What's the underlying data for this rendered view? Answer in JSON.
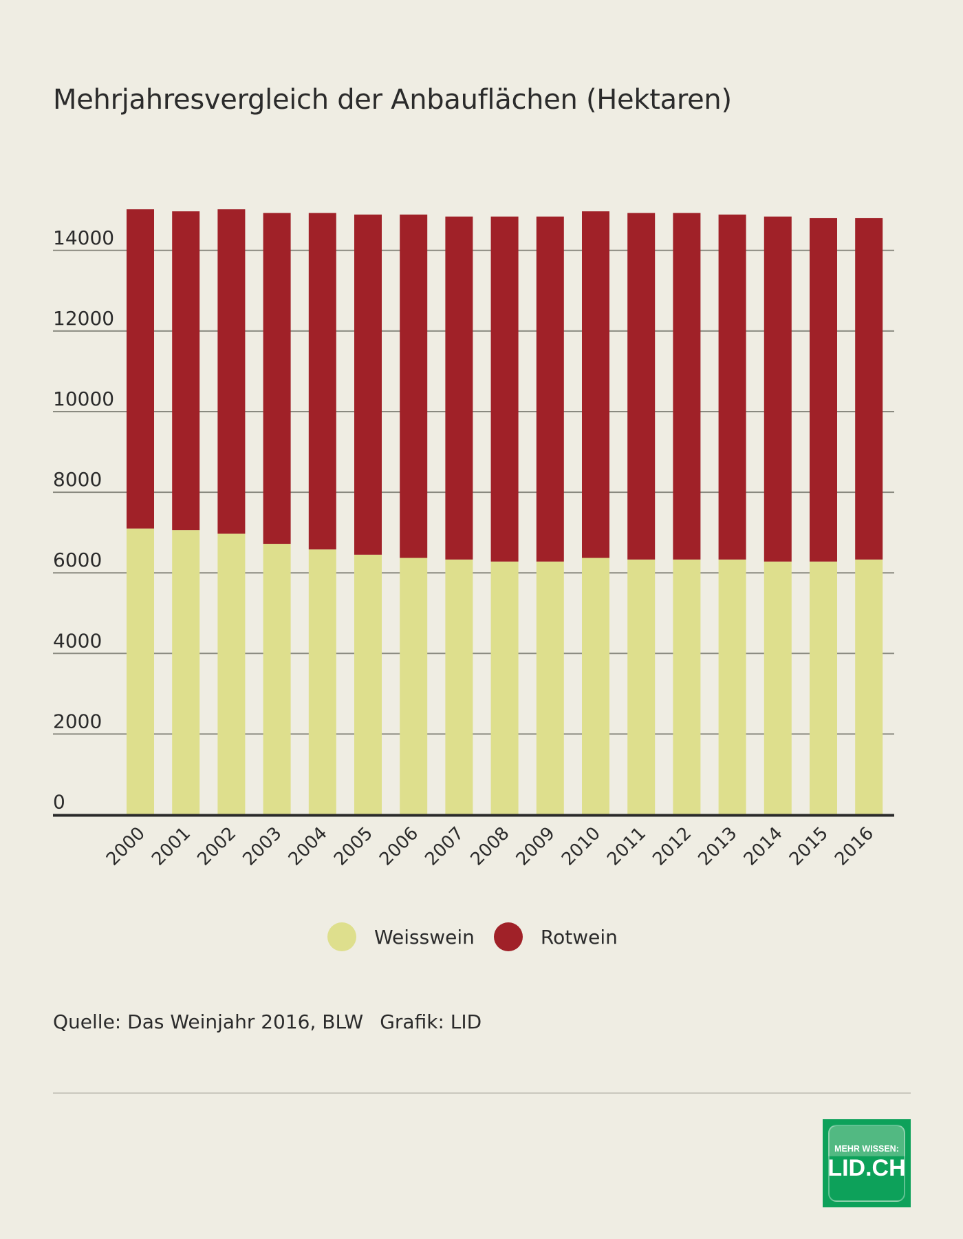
{
  "chart_data": {
    "type": "bar",
    "stacked": true,
    "title": "Mehrjahresvergleich der Anbauflächen (Hektaren)",
    "xlabel": "",
    "ylabel": "",
    "categories": [
      "2000",
      "2001",
      "2002",
      "2003",
      "2004",
      "2005",
      "2006",
      "2007",
      "2008",
      "2009",
      "2010",
      "2011",
      "2012",
      "2013",
      "2014",
      "2015",
      "2016"
    ],
    "series": [
      {
        "name": "Weisswein",
        "color": "#dedf8d",
        "values": [
          7100,
          7060,
          6970,
          6720,
          6580,
          6450,
          6370,
          6330,
          6280,
          6280,
          6370,
          6330,
          6330,
          6330,
          6280,
          6280,
          6330
        ]
      },
      {
        "name": "Rotwein",
        "color": "#a02128",
        "values": [
          7920,
          7910,
          8050,
          8210,
          8350,
          8440,
          8520,
          8510,
          8560,
          8560,
          8600,
          8600,
          8600,
          8560,
          8560,
          8520,
          8470
        ]
      }
    ],
    "ylim": [
      0,
      15000
    ],
    "yticks": [
      "0",
      "2000",
      "4000",
      "6000",
      "8000",
      "10000",
      "12000",
      "14000"
    ],
    "grid": true,
    "legend": "bottom-center"
  },
  "footer": {
    "source": "Quelle: Das Weinjahr 2016, BLW",
    "credit": "Grafik: LID"
  },
  "logo": {
    "line1": "MEHR WISSEN:",
    "line2": "LID.CH"
  }
}
